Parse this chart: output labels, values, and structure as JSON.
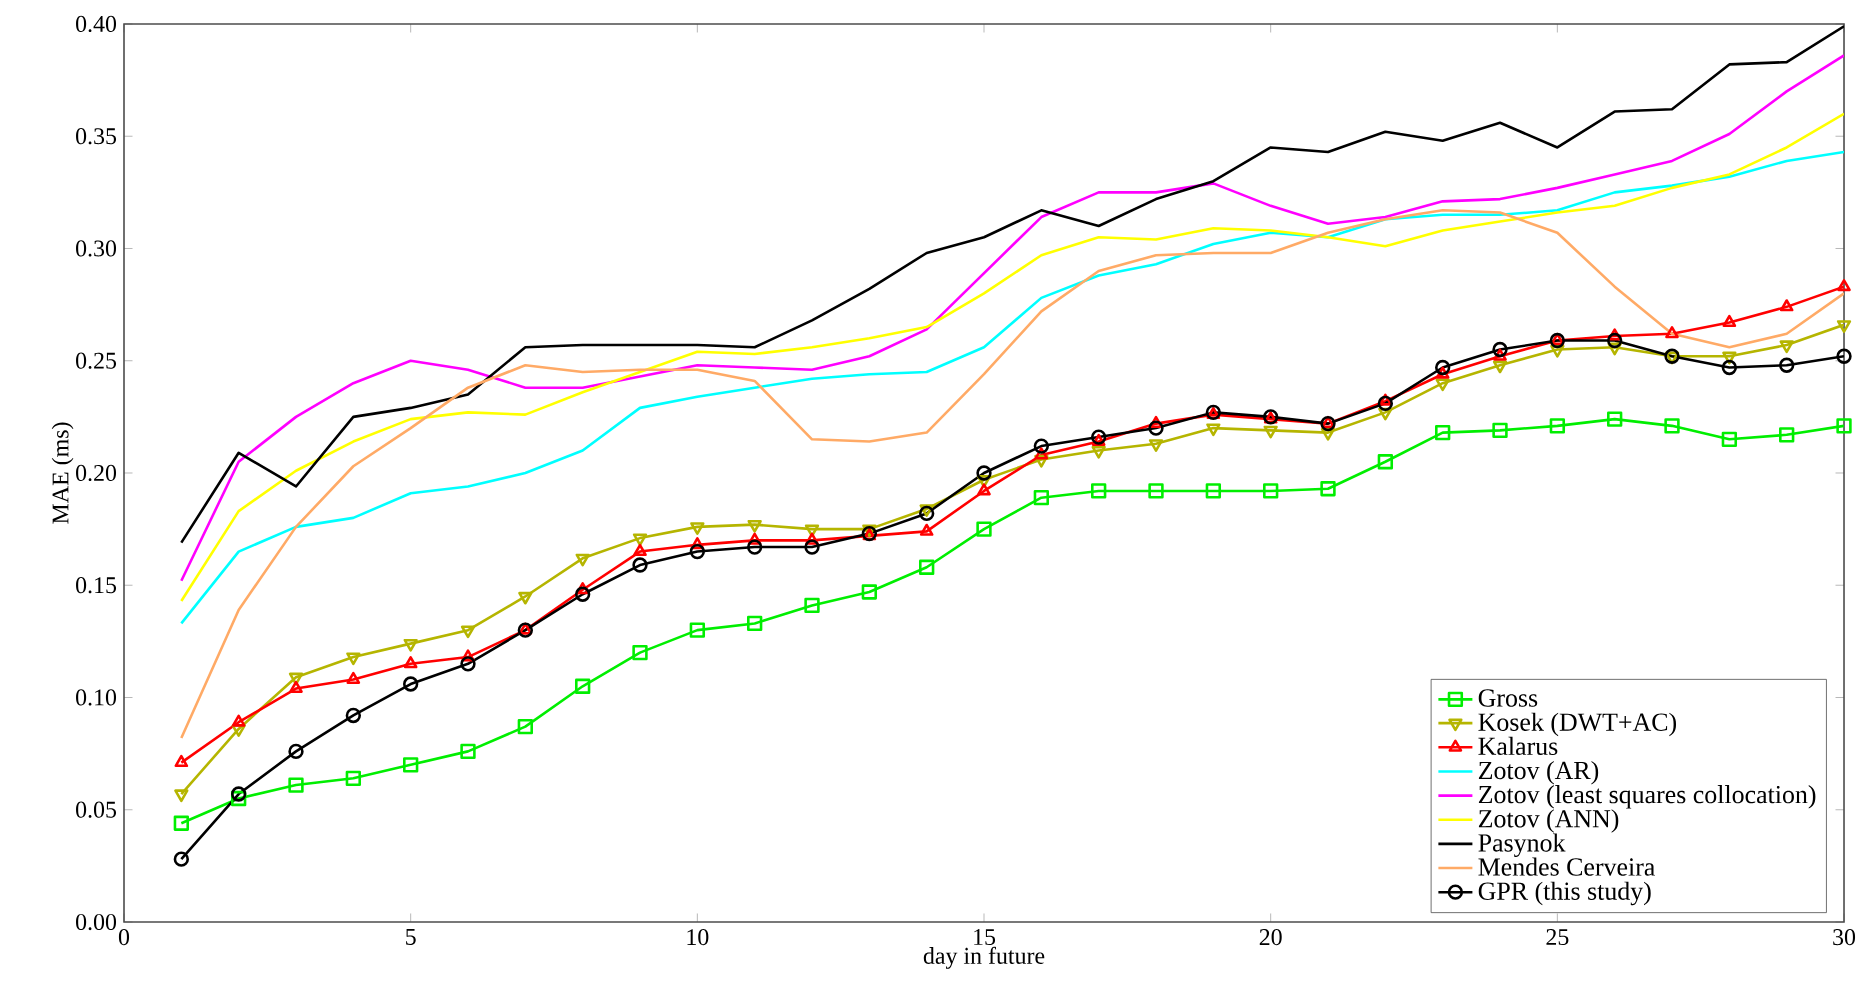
{
  "chart_data": {
    "type": "line",
    "xlabel": "day in future",
    "ylabel": "MAE (ms)",
    "x": [
      1,
      2,
      3,
      4,
      5,
      6,
      7,
      8,
      9,
      10,
      11,
      12,
      13,
      14,
      15,
      16,
      17,
      18,
      19,
      20,
      21,
      22,
      23,
      24,
      25,
      26,
      27,
      28,
      29,
      30
    ],
    "xlim": [
      0,
      30
    ],
    "ylim": [
      0,
      0.4
    ],
    "xticks": [
      0,
      5,
      10,
      15,
      20,
      25,
      30
    ],
    "yticks": [
      {
        "value": 0,
        "label": "0.00"
      },
      {
        "value": 0.05,
        "label": "0.05"
      },
      {
        "value": 0.1,
        "label": "0.10"
      },
      {
        "value": 0.15,
        "label": "0.15"
      },
      {
        "value": 0.2,
        "label": "0.20"
      },
      {
        "value": 0.25,
        "label": "0.25"
      },
      {
        "value": 0.3,
        "label": "0.30"
      },
      {
        "value": 0.35,
        "label": "0.35"
      },
      {
        "value": 0.4,
        "label": "0.40"
      }
    ],
    "legend": "bottom right",
    "grid": false,
    "series": [
      {
        "name": "Gross",
        "color": "#00ee00",
        "marker": "square",
        "values": [
          0.044,
          0.055,
          0.061,
          0.064,
          0.07,
          0.076,
          0.087,
          0.105,
          0.12,
          0.13,
          0.133,
          0.141,
          0.147,
          0.158,
          0.175,
          0.189,
          0.192,
          0.192,
          0.192,
          0.192,
          0.193,
          0.205,
          0.218,
          0.219,
          0.221,
          0.224,
          0.221,
          0.215,
          0.217,
          0.221
        ]
      },
      {
        "name": "Kosek (DWT+AC)",
        "color": "#b5b500",
        "marker": "triangle-down",
        "values": [
          0.057,
          0.086,
          0.109,
          0.118,
          0.124,
          0.13,
          0.145,
          0.162,
          0.171,
          0.176,
          0.177,
          0.175,
          0.175,
          0.184,
          0.197,
          0.206,
          0.21,
          0.213,
          0.22,
          0.219,
          0.218,
          0.227,
          0.24,
          0.248,
          0.255,
          0.256,
          0.252,
          0.252,
          0.257,
          0.266
        ]
      },
      {
        "name": "Kalarus",
        "color": "#ff0000",
        "marker": "triangle",
        "values": [
          0.071,
          0.089,
          0.104,
          0.108,
          0.115,
          0.118,
          0.13,
          0.148,
          0.165,
          0.168,
          0.17,
          0.17,
          0.172,
          0.174,
          0.192,
          0.208,
          0.214,
          0.222,
          0.226,
          0.224,
          0.222,
          0.232,
          0.244,
          0.252,
          0.259,
          0.261,
          0.262,
          0.267,
          0.274,
          0.283
        ]
      },
      {
        "name": "Zotov (AR)",
        "color": "#00ffff",
        "marker": "none",
        "values": [
          0.133,
          0.165,
          0.176,
          0.18,
          0.191,
          0.194,
          0.2,
          0.21,
          0.229,
          0.234,
          0.238,
          0.242,
          0.244,
          0.245,
          0.256,
          0.278,
          0.288,
          0.293,
          0.302,
          0.307,
          0.305,
          0.313,
          0.315,
          0.315,
          0.317,
          0.325,
          0.328,
          0.332,
          0.339,
          0.343
        ]
      },
      {
        "name": "Zotov (least squares collocation)",
        "color": "#ff00ff",
        "marker": "none",
        "values": [
          0.152,
          0.205,
          0.225,
          0.24,
          0.25,
          0.246,
          0.238,
          0.238,
          0.243,
          0.248,
          0.247,
          0.246,
          0.252,
          0.264,
          0.289,
          0.314,
          0.325,
          0.325,
          0.329,
          0.319,
          0.311,
          0.314,
          0.321,
          0.322,
          0.327,
          0.333,
          0.339,
          0.351,
          0.37,
          0.386
        ]
      },
      {
        "name": "Zotov (ANN)",
        "color": "#ffff00",
        "marker": "none",
        "values": [
          0.143,
          0.183,
          0.201,
          0.214,
          0.224,
          0.227,
          0.226,
          0.236,
          0.245,
          0.254,
          0.253,
          0.256,
          0.26,
          0.265,
          0.28,
          0.297,
          0.305,
          0.304,
          0.309,
          0.308,
          0.305,
          0.301,
          0.308,
          0.312,
          0.316,
          0.319,
          0.327,
          0.333,
          0.345,
          0.36
        ]
      },
      {
        "name": "Pasynok",
        "color": "#000000",
        "marker": "none",
        "values": [
          0.169,
          0.209,
          0.194,
          0.225,
          0.229,
          0.235,
          0.256,
          0.257,
          0.257,
          0.257,
          0.256,
          0.268,
          0.282,
          0.298,
          0.305,
          0.317,
          0.31,
          0.322,
          0.33,
          0.345,
          0.343,
          0.352,
          0.348,
          0.356,
          0.345,
          0.361,
          0.362,
          0.382,
          0.383,
          0.399
        ]
      },
      {
        "name": "Mendes Cerveira",
        "color": "#ffaa66",
        "marker": "none",
        "values": [
          0.082,
          0.139,
          0.176,
          0.203,
          0.22,
          0.238,
          0.248,
          0.245,
          0.246,
          0.246,
          0.241,
          0.215,
          0.214,
          0.218,
          0.244,
          0.272,
          0.29,
          0.297,
          0.298,
          0.298,
          0.307,
          0.313,
          0.317,
          0.316,
          0.307,
          0.283,
          0.262,
          0.256,
          0.262,
          0.28
        ]
      },
      {
        "name": "GPR (this study)",
        "color": "#000000",
        "marker": "circle",
        "values": [
          0.028,
          0.057,
          0.076,
          0.092,
          0.106,
          0.115,
          0.13,
          0.146,
          0.159,
          0.165,
          0.167,
          0.167,
          0.173,
          0.182,
          0.2,
          0.212,
          0.216,
          0.22,
          0.227,
          0.225,
          0.222,
          0.231,
          0.247,
          0.255,
          0.259,
          0.259,
          0.252,
          0.247,
          0.248,
          0.252
        ]
      }
    ]
  }
}
